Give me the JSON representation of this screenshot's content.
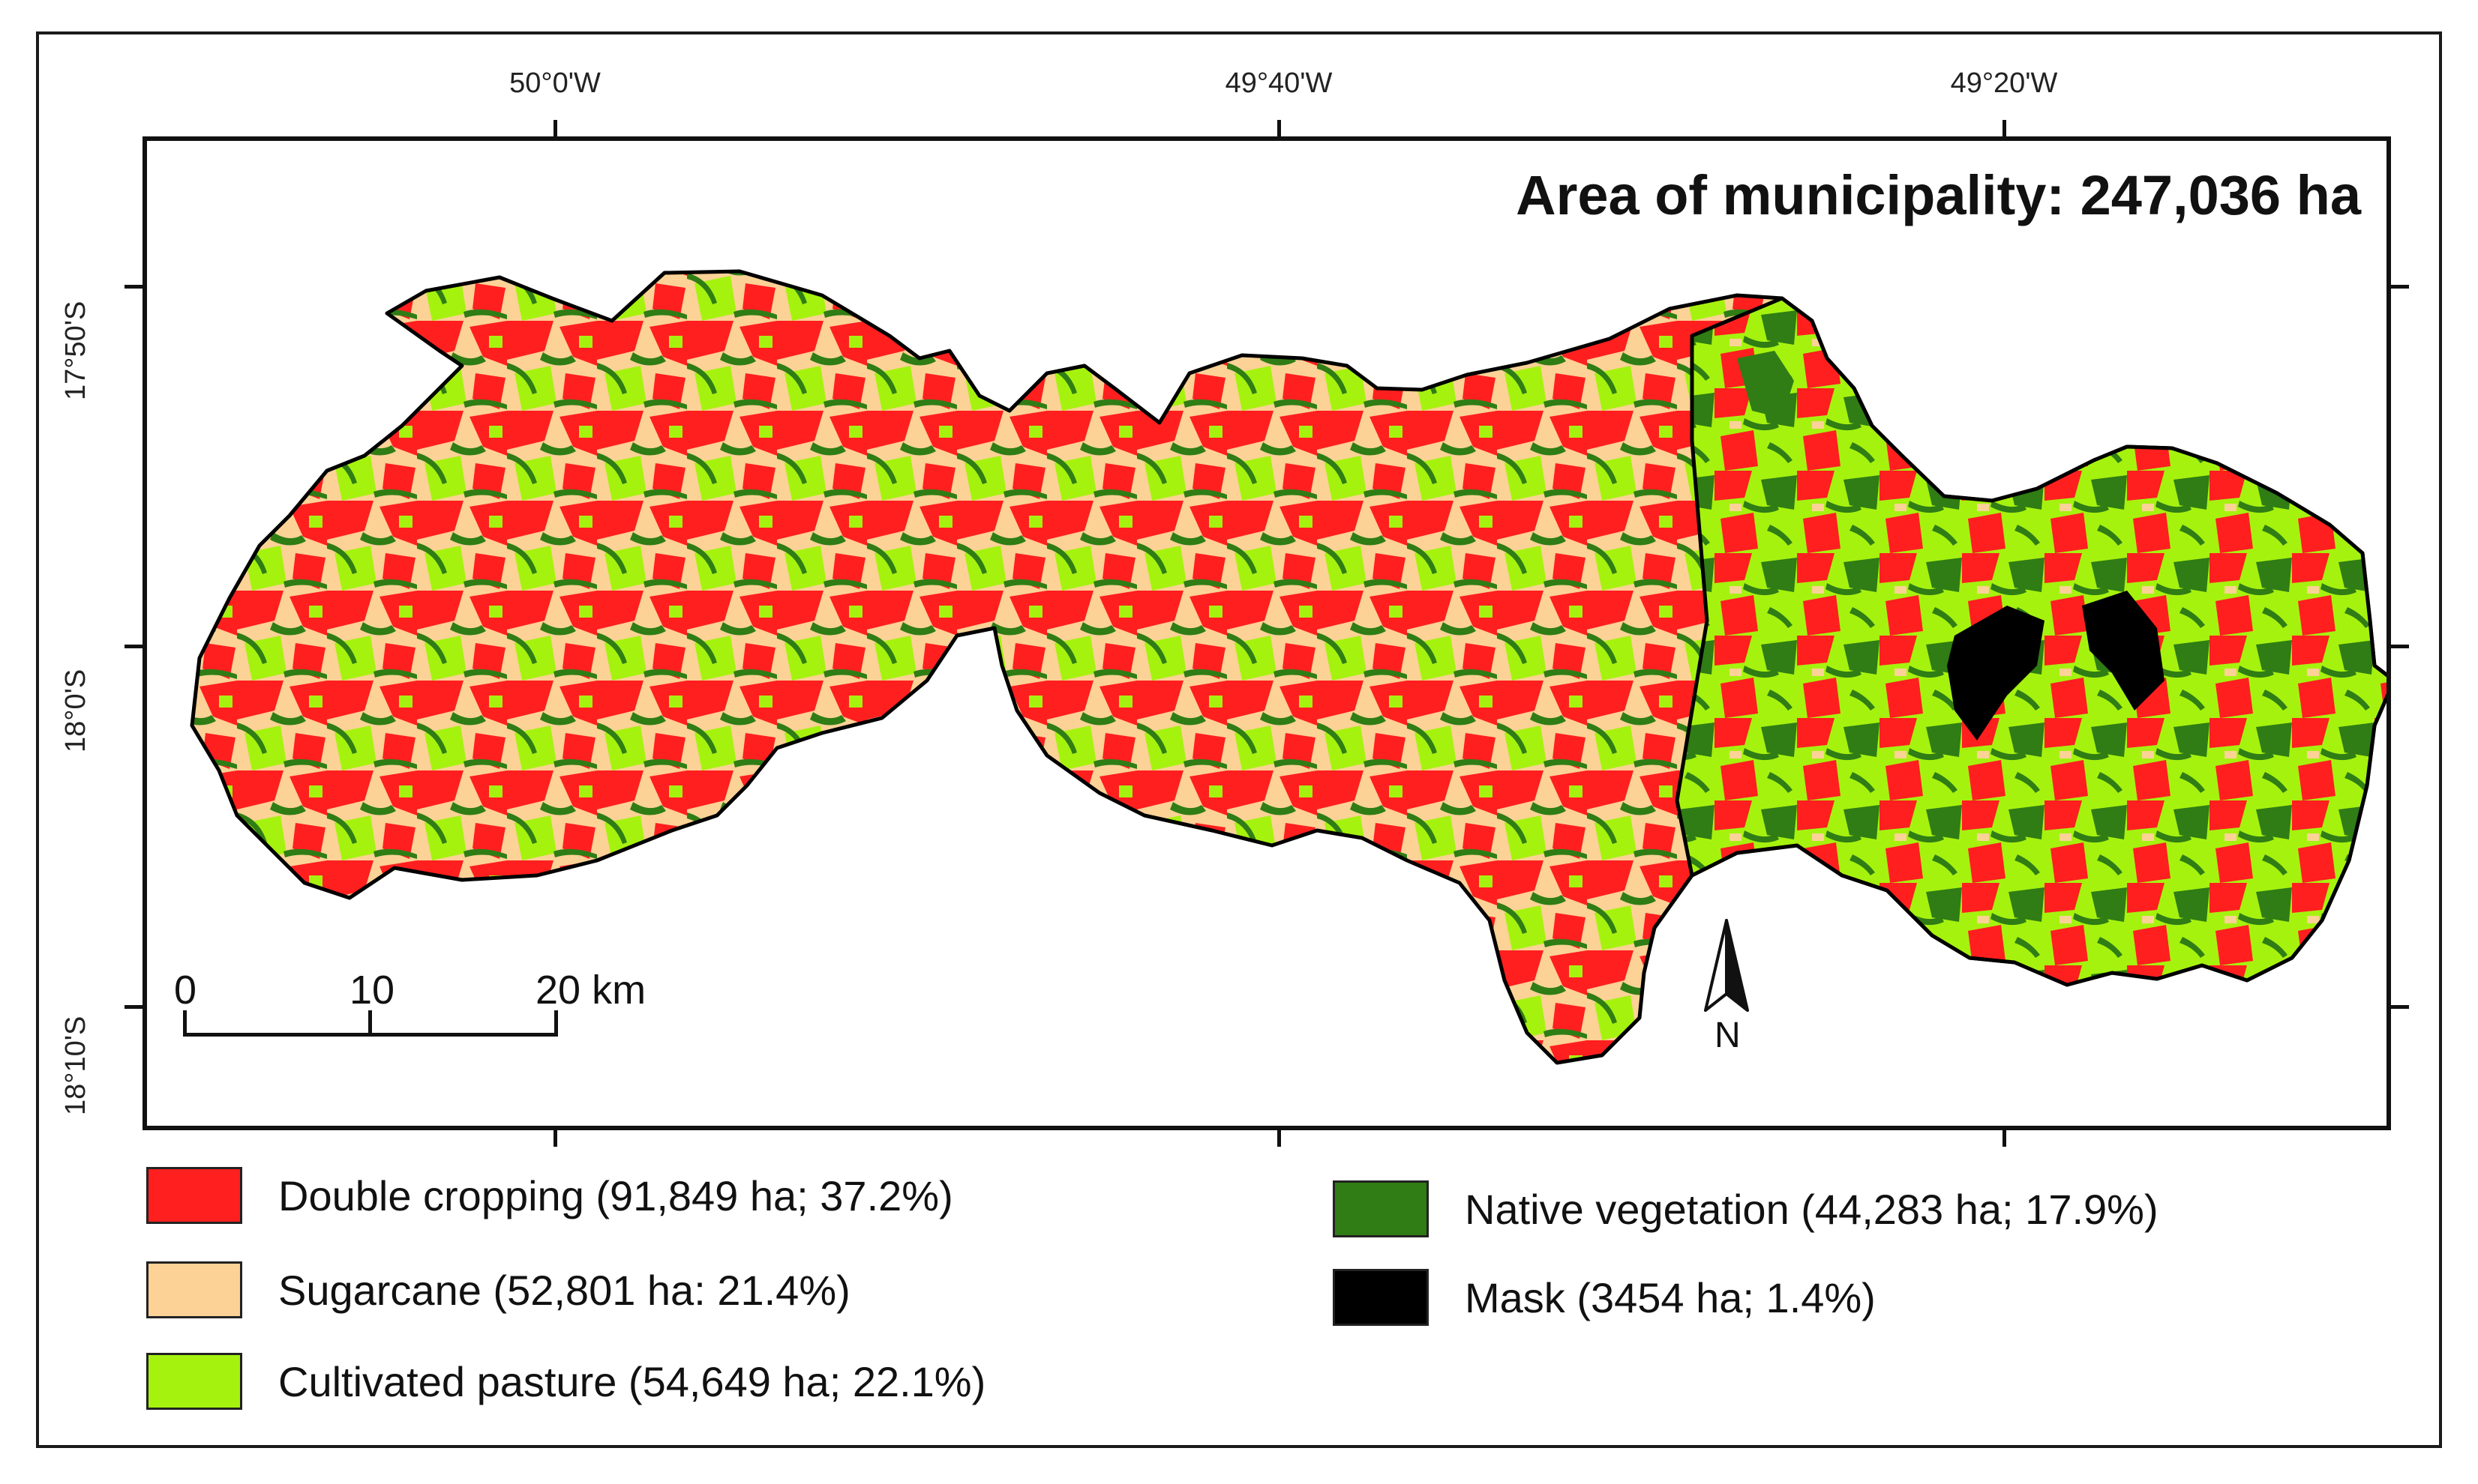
{
  "map": {
    "title": "Area of municipality: 247,036 ha",
    "longitude_labels": [
      "50°0'W",
      "49°40'W",
      "49°20'W"
    ],
    "latitude_labels": [
      "17°50'S",
      "18°0'S",
      "18°10'S"
    ],
    "scale_bar": {
      "labels": [
        "0",
        "10",
        "20 km"
      ]
    },
    "north_arrow": {
      "label": "N"
    }
  },
  "legend": {
    "items": [
      {
        "label": "Double cropping (91,849 ha; 37.2%)",
        "color": "#ff1f1f"
      },
      {
        "label": "Sugarcane (52,801 ha: 21.4%)",
        "color": "#fcd296"
      },
      {
        "label": "Cultivated pasture (54,649 ha; 22.1%)",
        "color": "#a6f20f"
      },
      {
        "label": "Native vegetation (44,283 ha; 17.9%)",
        "color": "#2f7d14"
      },
      {
        "label": "Mask (3454 ha; 1.4%)",
        "color": "#000000"
      }
    ]
  }
}
